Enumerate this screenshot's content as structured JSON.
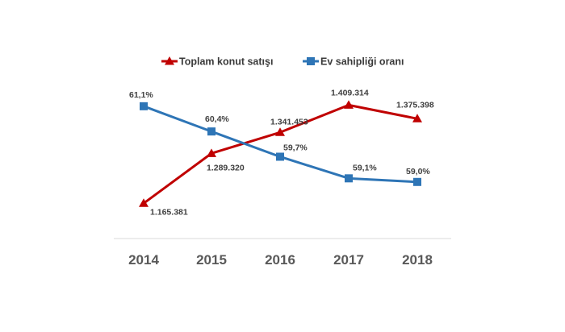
{
  "chart_data": {
    "type": "line",
    "categories": [
      "2014",
      "2015",
      "2016",
      "2017",
      "2018"
    ],
    "series": [
      {
        "name": "Toplam konut satışı",
        "values": [
          1165381,
          1289320,
          1341453,
          1409314,
          1375398
        ],
        "labels": [
          "1.165.381",
          "1.289.320",
          "1.341.453",
          "1.409.314",
          "1.375.398"
        ],
        "color": "#C00000",
        "marker": "triangle",
        "ylim": [
          1120000,
          1460000
        ]
      },
      {
        "name": "Ev sahipliği oranı",
        "values": [
          61.1,
          60.4,
          59.7,
          59.1,
          59.0
        ],
        "labels": [
          "61,1%",
          "60,4%",
          "59,7%",
          "59,1%",
          "59,0%"
        ],
        "color": "#2E75B6",
        "marker": "square",
        "ylim": [
          57.9,
          61.7
        ]
      }
    ],
    "legend_position": "top",
    "grid": false,
    "title": "",
    "xlabel": "",
    "ylabel": ""
  }
}
